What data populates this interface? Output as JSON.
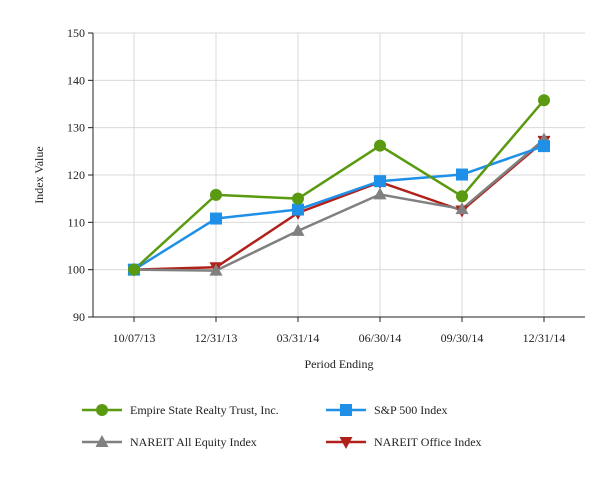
{
  "chart_data": {
    "type": "line",
    "categories": [
      "10/07/13",
      "12/31/13",
      "03/31/14",
      "06/30/14",
      "09/30/14",
      "12/31/14"
    ],
    "xlabel": "Period Ending",
    "ylabel": "Index Value",
    "ylim": [
      90,
      150
    ],
    "yticks": [
      90,
      100,
      110,
      120,
      130,
      140,
      150
    ],
    "grid": true,
    "legend_position": "bottom",
    "series": [
      {
        "name": "Empire State Realty Trust, Inc.",
        "values": [
          100,
          115.8,
          115,
          126.2,
          115.5,
          135.8
        ],
        "color": "#5a9a10",
        "marker": "circle"
      },
      {
        "name": "S&P 500 Index",
        "values": [
          100,
          110.8,
          112.7,
          118.7,
          120.1,
          126.1
        ],
        "color": "#1e90e8",
        "marker": "square"
      },
      {
        "name": "NAREIT All Equity Index",
        "values": [
          100,
          99.8,
          108.2,
          115.9,
          112.8,
          127.5
        ],
        "color": "#808080",
        "marker": "triangle-up"
      },
      {
        "name": "NAREIT Office Index",
        "values": [
          100,
          100.5,
          112,
          118.5,
          112.5,
          127.2
        ],
        "color": "#b0211a",
        "marker": "triangle-down"
      }
    ]
  }
}
